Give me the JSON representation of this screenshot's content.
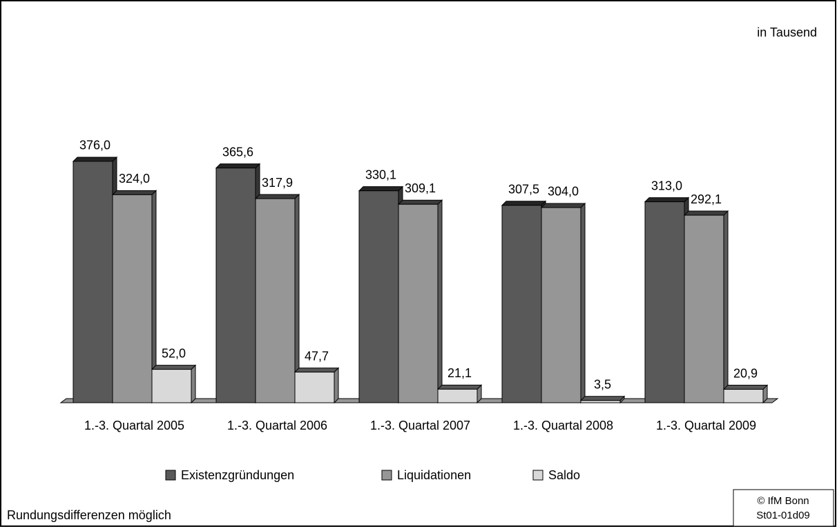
{
  "chart_data": {
    "type": "bar3d",
    "note": "in Tausend",
    "categories": [
      "1.-3. Quartal 2005",
      "1.-3. Quartal 2006",
      "1.-3. Quartal 2007",
      "1.-3. Quartal 2008",
      "1.-3. Quartal 2009"
    ],
    "series": [
      {
        "name": "Existenzgründungen",
        "color": "#595959",
        "values": [
          376.0,
          365.6,
          330.1,
          307.5,
          313.0
        ],
        "value_labels": [
          "376,0",
          "365,6",
          "330,1",
          "307,5",
          "313,0"
        ]
      },
      {
        "name": "Liquidationen",
        "color": "#969696",
        "values": [
          324.0,
          317.9,
          309.1,
          304.0,
          292.1
        ],
        "value_labels": [
          "324,0",
          "317,9",
          "309,1",
          "304,0",
          "292,1"
        ]
      },
      {
        "name": "Saldo",
        "color": "#d9d9d9",
        "values": [
          52.0,
          47.7,
          21.1,
          3.5,
          20.9
        ],
        "value_labels": [
          "52,0",
          "47,7",
          "21,1",
          "3,5",
          "20,9"
        ]
      }
    ],
    "legend": "bottom",
    "footnote": "Rundungsdifferenzen möglich",
    "source": [
      "© IfM Bonn",
      "St01-01d09"
    ]
  }
}
